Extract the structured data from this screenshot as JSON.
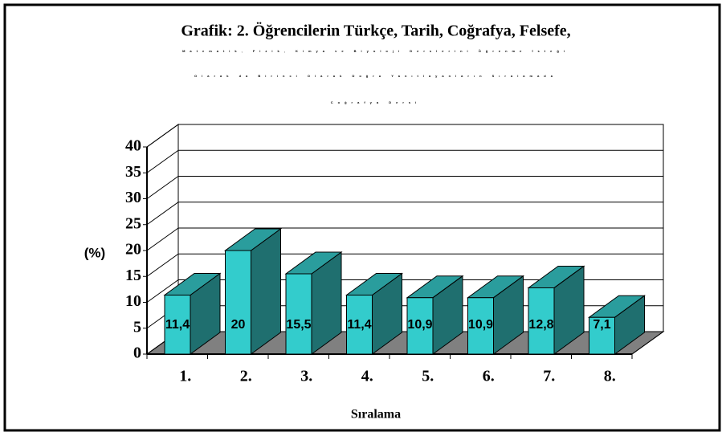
{
  "chart_data": {
    "type": "bar3d",
    "title": "Grafik: 2. Öğrencilerin Türkçe, Tarih, Coğrafya, Felsefe,",
    "subtitle": [
      "Matematik, Fizik, Kimya ve Biyoloji Derslerini Öğrenme İsteği",
      "Olarak da Birinci Olarak Doğru Yanıtlayanların Sıralamada",
      "Coğrafya Dersi"
    ],
    "ylabel": "(%)",
    "xlabel": "Sıralama",
    "categories": [
      "1.",
      "2.",
      "3.",
      "4.",
      "5.",
      "6.",
      "7.",
      "8."
    ],
    "values": [
      11.4,
      20,
      15.5,
      11.4,
      10.9,
      10.9,
      12.8,
      7.1
    ],
    "value_labels": [
      "11,4",
      "20",
      "15,5",
      "11,4",
      "10,9",
      "10,9",
      "12,8",
      "7,1"
    ],
    "color": "#33cccc",
    "ylim": [
      0,
      40
    ],
    "yticks": [
      0,
      5,
      10,
      15,
      20,
      25,
      30,
      35,
      40
    ],
    "grid": true
  }
}
